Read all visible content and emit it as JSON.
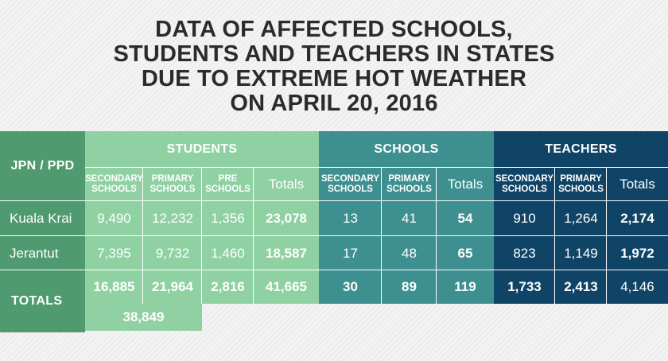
{
  "title_lines": [
    "DATA OF AFFECTED SCHOOLS,",
    "STUDENTS AND TEACHERS IN STATES",
    "DUE TO EXTREME HOT WEATHER",
    "ON APRIL 20, 2016"
  ],
  "colors": {
    "students": "#8fd1a2",
    "schools": "#3e8f8f",
    "teachers": "#0f4466",
    "row_label": "#4f9a6e",
    "text": "#ffffff"
  },
  "chart_data": {
    "type": "table",
    "title": "DATA OF AFFECTED SCHOOLS, STUDENTS AND TEACHERS IN STATES DUE TO EXTREME HOT WEATHER ON APRIL 20, 2016",
    "row_header": "JPN / PPD",
    "groups": [
      {
        "name": "STUDENTS",
        "columns": [
          "SECONDARY SCHOOLS",
          "PRIMARY SCHOOLS",
          "PRE SCHOOLS",
          "Totals"
        ]
      },
      {
        "name": "SCHOOLS",
        "columns": [
          "SECONDARY SCHOOLS",
          "PRIMARY SCHOOLS",
          "Totals"
        ]
      },
      {
        "name": "TEACHERS",
        "columns": [
          "SECONDARY SCHOOLS",
          "PRIMARY SCHOOLS",
          "Totals"
        ]
      }
    ],
    "rows": [
      {
        "label": "Kuala Krai",
        "values": [
          "9,490",
          "12,232",
          "1,356",
          "23,078",
          "13",
          "41",
          "54",
          "910",
          "1,264",
          "2,174"
        ]
      },
      {
        "label": "Jerantut",
        "values": [
          "7,395",
          "9,732",
          "1,460",
          "18,587",
          "17",
          "48",
          "65",
          "823",
          "1,149",
          "1,972"
        ]
      }
    ],
    "totals": {
      "label": "TOTALS",
      "values": [
        "16,885",
        "21,964",
        "2,816",
        "41,665",
        "30",
        "89",
        "119",
        "1,733",
        "2,413",
        "4,146"
      ],
      "extra": "38,849"
    }
  }
}
